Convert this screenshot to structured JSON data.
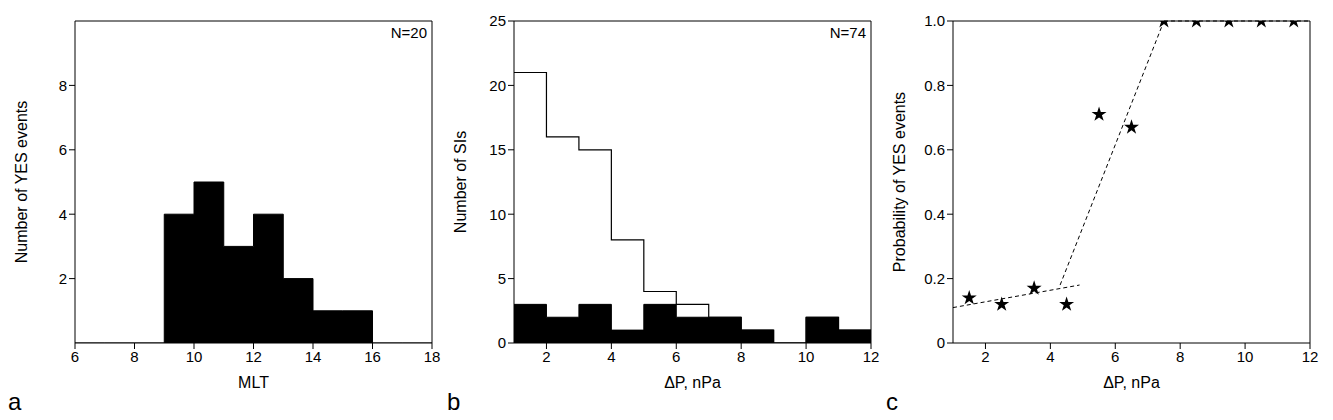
{
  "chart_data": [
    {
      "type": "histogram",
      "panel_label": "a",
      "annotation": "N=20",
      "x_label": "MLT",
      "y_label": "Number of YES events",
      "bins": [
        6,
        7,
        8,
        9,
        10,
        11,
        12,
        13,
        14,
        15,
        16,
        17,
        18
      ],
      "series": [
        {
          "type": "area",
          "color": "#000000",
          "counts": [
            0,
            0,
            0,
            4,
            5,
            3,
            4,
            2,
            1,
            1,
            0,
            0
          ]
        }
      ],
      "xlim": [
        6,
        18
      ],
      "xticks": [
        6,
        8,
        10,
        12,
        14,
        16,
        18
      ],
      "ylim": [
        0,
        10
      ],
      "yticks": [
        2,
        4,
        6,
        8
      ]
    },
    {
      "type": "histogram",
      "panel_label": "b",
      "annotation": "N=74",
      "x_label": "ΔP, nPa",
      "y_label": "Number of SIs",
      "bins": [
        1,
        2,
        3,
        4,
        5,
        6,
        7,
        8,
        9,
        10,
        11,
        12
      ],
      "series": [
        {
          "type": "area",
          "color": "#000000",
          "counts": [
            3,
            2,
            3,
            1,
            3,
            2,
            2,
            1,
            0,
            2,
            1
          ]
        },
        {
          "type": "line",
          "color": "#000000",
          "counts": [
            21,
            16,
            15,
            8,
            4,
            3,
            2,
            1,
            0,
            2,
            1
          ]
        }
      ],
      "xlim": [
        1,
        12
      ],
      "xticks": [
        2,
        4,
        6,
        8,
        10,
        12
      ],
      "ylim": [
        0,
        25
      ],
      "yticks": [
        0,
        5,
        10,
        15,
        20,
        25
      ]
    },
    {
      "type": "scatter",
      "panel_label": "c",
      "x_label": "ΔP, nPa",
      "y_label": "Probability of YES events",
      "x": [
        1.5,
        2.5,
        3.5,
        4.5,
        5.5,
        6.5,
        7.5,
        8.5,
        9.5,
        10.5,
        11.5
      ],
      "values": [
        0.14,
        0.12,
        0.17,
        0.12,
        0.71,
        0.67,
        1.0,
        1.0,
        1.0,
        1.0,
        1.0
      ],
      "marker": "star",
      "color": "#000000",
      "fit_lines": [
        {
          "x": [
            1,
            4.9
          ],
          "y": [
            0.11,
            0.18
          ],
          "line_style": "dashed"
        },
        {
          "x": [
            4.3,
            7.5
          ],
          "y": [
            0.18,
            1.0
          ],
          "line_style": "dashed"
        },
        {
          "x": [
            7.5,
            12
          ],
          "y": [
            1.0,
            1.0
          ],
          "line_style": "dashed"
        }
      ],
      "xlim": [
        1,
        12
      ],
      "xticks": [
        2,
        4,
        6,
        8,
        10,
        12
      ],
      "ylim": [
        0,
        1
      ],
      "yticks": [
        0,
        0.2,
        0.4,
        0.6,
        0.8,
        {
          "value": 1,
          "label": "1.0"
        }
      ]
    }
  ]
}
